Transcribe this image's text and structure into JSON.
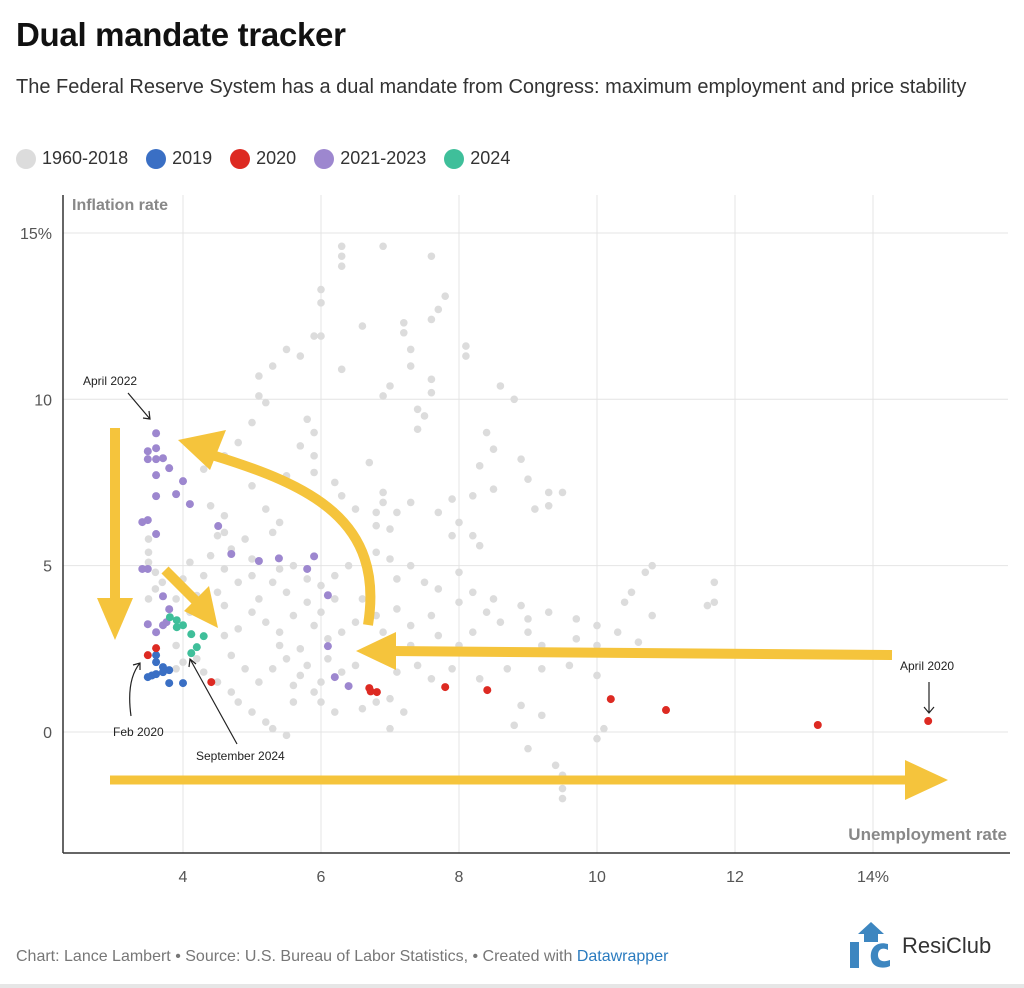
{
  "header": {
    "title": "Dual mandate tracker",
    "subtitle": "The Federal Reserve System has a dual mandate from Congress: maximum employment and price stability"
  },
  "legend": [
    {
      "label": "1960-2018",
      "color": "#dcdcdc"
    },
    {
      "label": "2019",
      "color": "#3a6fc4"
    },
    {
      "label": "2020",
      "color": "#dd2a22"
    },
    {
      "label": "2021-2023",
      "color": "#9d87cf"
    },
    {
      "label": "2024",
      "color": "#3fbf9a"
    }
  ],
  "chart_data": {
    "type": "scatter",
    "title": "Dual mandate tracker",
    "xlabel": "Unemployment rate",
    "ylabel": "Inflation rate",
    "xlim": [
      2.3,
      15.9
    ],
    "ylim": [
      -3.6,
      16.2
    ],
    "x_ticks": [
      {
        "v": 4,
        "label": "4"
      },
      {
        "v": 6,
        "label": "6"
      },
      {
        "v": 8,
        "label": "8"
      },
      {
        "v": 10,
        "label": "10"
      },
      {
        "v": 12,
        "label": "12"
      },
      {
        "v": 14,
        "label": "14%"
      }
    ],
    "y_ticks": [
      {
        "v": 15,
        "label": "15%"
      },
      {
        "v": 10,
        "label": "10"
      },
      {
        "v": 5,
        "label": "5"
      },
      {
        "v": 0,
        "label": "0"
      }
    ],
    "grid": true,
    "legend_position": "top-left",
    "series": [
      {
        "name": "1960-2018",
        "color": "#dcdcdc",
        "points": [
          [
            6.3,
            14.6
          ],
          [
            6.3,
            14.3
          ],
          [
            6.3,
            14.0
          ],
          [
            6.9,
            14.6
          ],
          [
            7.6,
            14.3
          ],
          [
            6.0,
            13.3
          ],
          [
            6.0,
            12.9
          ],
          [
            7.8,
            13.1
          ],
          [
            7.7,
            12.7
          ],
          [
            7.6,
            12.4
          ],
          [
            6.6,
            12.2
          ],
          [
            7.2,
            12.3
          ],
          [
            7.2,
            12.0
          ],
          [
            6.0,
            11.9
          ],
          [
            5.9,
            11.9
          ],
          [
            5.5,
            11.5
          ],
          [
            5.7,
            11.3
          ],
          [
            6.3,
            10.9
          ],
          [
            5.3,
            11.0
          ],
          [
            7.3,
            11.0
          ],
          [
            7.3,
            11.5
          ],
          [
            8.1,
            11.6
          ],
          [
            8.1,
            11.3
          ],
          [
            7.6,
            10.6
          ],
          [
            7.6,
            10.2
          ],
          [
            7.0,
            10.4
          ],
          [
            6.9,
            10.1
          ],
          [
            5.1,
            10.7
          ],
          [
            5.1,
            10.1
          ],
          [
            5.2,
            9.9
          ],
          [
            8.6,
            10.4
          ],
          [
            8.8,
            10.0
          ],
          [
            7.4,
            9.7
          ],
          [
            7.5,
            9.5
          ],
          [
            7.4,
            9.1
          ],
          [
            5.8,
            9.4
          ],
          [
            5.9,
            9.0
          ],
          [
            5.7,
            8.6
          ],
          [
            5.0,
            9.3
          ],
          [
            4.8,
            8.7
          ],
          [
            4.6,
            8.3
          ],
          [
            8.4,
            9.0
          ],
          [
            8.5,
            8.5
          ],
          [
            8.3,
            8.0
          ],
          [
            8.9,
            8.2
          ],
          [
            9.0,
            7.6
          ],
          [
            8.5,
            7.3
          ],
          [
            8.2,
            7.1
          ],
          [
            7.9,
            7.0
          ],
          [
            5.9,
            8.3
          ],
          [
            5.9,
            7.8
          ],
          [
            6.7,
            8.1
          ],
          [
            4.3,
            7.9
          ],
          [
            5.0,
            7.4
          ],
          [
            5.5,
            7.7
          ],
          [
            6.2,
            7.5
          ],
          [
            6.3,
            7.1
          ],
          [
            6.9,
            7.2
          ],
          [
            6.9,
            6.9
          ],
          [
            7.3,
            6.9
          ],
          [
            7.7,
            6.6
          ],
          [
            7.1,
            6.6
          ],
          [
            6.8,
            6.6
          ],
          [
            6.5,
            6.7
          ],
          [
            5.2,
            6.7
          ],
          [
            4.4,
            6.8
          ],
          [
            4.6,
            6.5
          ],
          [
            9.3,
            7.2
          ],
          [
            9.5,
            7.2
          ],
          [
            9.3,
            6.8
          ],
          [
            9.1,
            6.7
          ],
          [
            8.0,
            6.3
          ],
          [
            8.2,
            5.9
          ],
          [
            8.3,
            5.6
          ],
          [
            7.9,
            5.9
          ],
          [
            6.8,
            6.2
          ],
          [
            7.0,
            6.1
          ],
          [
            5.4,
            6.3
          ],
          [
            5.3,
            6.0
          ],
          [
            4.9,
            5.8
          ],
          [
            4.7,
            5.5
          ],
          [
            4.4,
            5.3
          ],
          [
            4.5,
            5.9
          ],
          [
            4.6,
            6.0
          ],
          [
            3.5,
            5.8
          ],
          [
            3.5,
            5.4
          ],
          [
            3.5,
            5.1
          ],
          [
            3.6,
            4.8
          ],
          [
            3.7,
            4.5
          ],
          [
            3.6,
            4.3
          ],
          [
            3.5,
            4.0
          ],
          [
            3.8,
            3.7
          ],
          [
            3.9,
            4.0
          ],
          [
            4.0,
            4.6
          ],
          [
            4.1,
            5.1
          ],
          [
            4.3,
            4.7
          ],
          [
            4.5,
            4.2
          ],
          [
            4.6,
            4.9
          ],
          [
            4.8,
            4.5
          ],
          [
            5.0,
            5.2
          ],
          [
            5.0,
            4.7
          ],
          [
            5.3,
            4.5
          ],
          [
            5.4,
            4.9
          ],
          [
            5.6,
            5.0
          ],
          [
            5.8,
            4.6
          ],
          [
            6.0,
            4.4
          ],
          [
            6.2,
            4.7
          ],
          [
            6.4,
            5.0
          ],
          [
            6.6,
            5.3
          ],
          [
            6.8,
            5.4
          ],
          [
            7.0,
            5.2
          ],
          [
            7.3,
            5.0
          ],
          [
            7.1,
            4.6
          ],
          [
            7.5,
            4.5
          ],
          [
            7.7,
            4.3
          ],
          [
            8.0,
            4.8
          ],
          [
            8.2,
            4.2
          ],
          [
            8.5,
            4.0
          ],
          [
            8.9,
            3.8
          ],
          [
            9.3,
            3.6
          ],
          [
            9.7,
            3.4
          ],
          [
            10.0,
            3.2
          ],
          [
            10.4,
            3.9
          ],
          [
            10.5,
            4.2
          ],
          [
            10.7,
            4.8
          ],
          [
            10.8,
            5.0
          ],
          [
            11.7,
            4.5
          ],
          [
            11.6,
            3.8
          ],
          [
            10.8,
            3.5
          ],
          [
            10.3,
            3.0
          ],
          [
            10.0,
            2.6
          ],
          [
            9.6,
            2.4
          ],
          [
            9.2,
            2.6
          ],
          [
            9.0,
            3.0
          ],
          [
            8.6,
            3.3
          ],
          [
            8.2,
            3.0
          ],
          [
            8.0,
            2.6
          ],
          [
            7.7,
            2.9
          ],
          [
            7.3,
            3.2
          ],
          [
            7.1,
            3.7
          ],
          [
            6.8,
            3.5
          ],
          [
            6.5,
            3.3
          ],
          [
            6.3,
            3.0
          ],
          [
            6.1,
            2.8
          ],
          [
            5.9,
            3.2
          ],
          [
            5.6,
            3.5
          ],
          [
            5.4,
            3.0
          ],
          [
            5.2,
            3.3
          ],
          [
            5.0,
            3.6
          ],
          [
            4.8,
            3.1
          ],
          [
            4.6,
            2.9
          ],
          [
            4.4,
            3.4
          ],
          [
            4.2,
            2.2
          ],
          [
            4.3,
            1.8
          ],
          [
            4.5,
            1.5
          ],
          [
            4.7,
            1.2
          ],
          [
            4.8,
            0.9
          ],
          [
            5.0,
            0.6
          ],
          [
            5.2,
            0.3
          ],
          [
            5.3,
            0.1
          ],
          [
            5.5,
            -0.1
          ],
          [
            5.6,
            1.4
          ],
          [
            5.7,
            1.7
          ],
          [
            5.8,
            2.0
          ],
          [
            5.9,
            1.2
          ],
          [
            6.0,
            0.9
          ],
          [
            6.0,
            1.5
          ],
          [
            5.5,
            2.2
          ],
          [
            5.3,
            1.9
          ],
          [
            5.1,
            1.5
          ],
          [
            4.9,
            1.9
          ],
          [
            4.7,
            2.3
          ],
          [
            5.4,
            2.6
          ],
          [
            5.7,
            2.5
          ],
          [
            6.1,
            2.2
          ],
          [
            6.3,
            1.8
          ],
          [
            6.5,
            2.0
          ],
          [
            6.9,
            2.2
          ],
          [
            7.1,
            1.8
          ],
          [
            7.0,
            1.0
          ],
          [
            7.4,
            2.0
          ],
          [
            7.6,
            1.6
          ],
          [
            7.9,
            1.9
          ],
          [
            8.3,
            1.6
          ],
          [
            8.7,
            1.9
          ],
          [
            9.2,
            1.9
          ],
          [
            9.6,
            2.0
          ],
          [
            10.0,
            1.7
          ],
          [
            8.9,
            0.8
          ],
          [
            9.2,
            0.5
          ],
          [
            8.8,
            0.2
          ],
          [
            7.2,
            0.6
          ],
          [
            6.8,
            0.9
          ],
          [
            6.6,
            0.7
          ],
          [
            6.2,
            0.6
          ],
          [
            5.6,
            0.9
          ],
          [
            7.0,
            0.1
          ],
          [
            9.0,
            -0.5
          ],
          [
            9.4,
            -1.0
          ],
          [
            9.5,
            -1.3
          ],
          [
            9.5,
            -1.7
          ],
          [
            9.5,
            -2.0
          ],
          [
            10.0,
            -0.2
          ],
          [
            10.1,
            0.1
          ],
          [
            3.9,
            2.6
          ],
          [
            4.0,
            2.1
          ],
          [
            3.9,
            1.9
          ],
          [
            4.1,
            3.6
          ],
          [
            4.2,
            4.1
          ],
          [
            4.6,
            3.8
          ],
          [
            5.1,
            4.0
          ],
          [
            5.5,
            4.2
          ],
          [
            5.8,
            3.9
          ],
          [
            6.0,
            3.6
          ],
          [
            6.2,
            4.0
          ],
          [
            6.6,
            4.0
          ],
          [
            6.9,
            3.0
          ],
          [
            7.3,
            2.6
          ],
          [
            7.6,
            3.5
          ],
          [
            8.0,
            3.9
          ],
          [
            8.4,
            3.6
          ],
          [
            9.0,
            3.4
          ],
          [
            9.7,
            2.8
          ],
          [
            10.6,
            2.7
          ],
          [
            11.7,
            3.9
          ]
        ]
      },
      {
        "name": "2019",
        "color": "#3a6fc4",
        "points": [
          [
            3.61,
            2.31
          ],
          [
            3.61,
            2.1
          ],
          [
            3.71,
            1.95
          ],
          [
            3.8,
            1.86
          ],
          [
            3.49,
            1.65
          ],
          [
            3.61,
            1.74
          ],
          [
            3.71,
            1.8
          ],
          [
            3.8,
            1.47
          ],
          [
            4.0,
            1.47
          ],
          [
            3.55,
            1.7
          ]
        ]
      },
      {
        "name": "2020",
        "color": "#dd2a22",
        "points": [
          [
            3.49,
            2.31
          ],
          [
            3.61,
            2.52
          ],
          [
            4.41,
            1.5
          ],
          [
            6.7,
            1.32
          ],
          [
            6.72,
            1.22
          ],
          [
            6.81,
            1.2
          ],
          [
            7.8,
            1.35
          ],
          [
            8.41,
            1.26
          ],
          [
            10.2,
            0.99
          ],
          [
            11.0,
            0.66
          ],
          [
            13.2,
            0.21
          ],
          [
            14.8,
            0.33
          ]
        ]
      },
      {
        "name": "2021-2023",
        "color": "#9d87cf",
        "points": [
          [
            3.61,
            8.98
          ],
          [
            3.49,
            8.44
          ],
          [
            3.61,
            8.53
          ],
          [
            3.49,
            8.2
          ],
          [
            3.61,
            8.2
          ],
          [
            3.71,
            8.23
          ],
          [
            3.8,
            7.93
          ],
          [
            3.61,
            7.72
          ],
          [
            4.0,
            7.54
          ],
          [
            3.9,
            7.15
          ],
          [
            3.61,
            7.09
          ],
          [
            4.1,
            6.85
          ],
          [
            3.41,
            6.31
          ],
          [
            3.49,
            6.37
          ],
          [
            4.51,
            6.19
          ],
          [
            3.61,
            5.95
          ],
          [
            4.7,
            5.35
          ],
          [
            5.1,
            5.14
          ],
          [
            5.39,
            5.22
          ],
          [
            5.9,
            5.28
          ],
          [
            3.41,
            4.9
          ],
          [
            3.49,
            4.9
          ],
          [
            5.8,
            4.9
          ],
          [
            3.71,
            4.08
          ],
          [
            6.1,
            4.11
          ],
          [
            3.8,
            3.69
          ],
          [
            3.49,
            3.24
          ],
          [
            3.61,
            3.0
          ],
          [
            3.71,
            3.21
          ],
          [
            3.76,
            3.3
          ],
          [
            6.1,
            2.58
          ],
          [
            6.2,
            1.65
          ],
          [
            6.4,
            1.38
          ]
        ]
      },
      {
        "name": "2024",
        "color": "#3fbf9a",
        "points": [
          [
            3.81,
            3.45
          ],
          [
            3.91,
            3.36
          ],
          [
            4.0,
            3.21
          ],
          [
            3.91,
            3.15
          ],
          [
            4.12,
            2.94
          ],
          [
            4.3,
            2.88
          ],
          [
            4.2,
            2.55
          ],
          [
            4.12,
            2.37
          ]
        ]
      }
    ],
    "annotations": [
      {
        "id": "april-2022",
        "text": "April 2022"
      },
      {
        "id": "feb-2020",
        "text": "Feb 2020"
      },
      {
        "id": "september-2024",
        "text": "September 2024"
      },
      {
        "id": "april-2020",
        "text": "April 2020"
      }
    ],
    "arrow_color": "#f5c43c"
  },
  "footer": {
    "text": "Chart: Lance Lambert • Source: U.S. Bureau of Labor Statistics,  • Created with ",
    "link": "Datawrapper",
    "logo_text": "ResiClub",
    "logo_mark": "RC"
  }
}
